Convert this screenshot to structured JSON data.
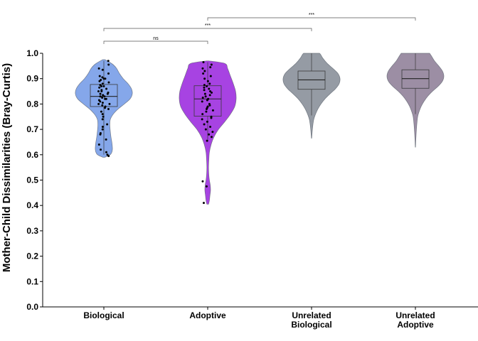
{
  "chart_data": {
    "type": "violin",
    "title": "",
    "xlabel": "",
    "ylabel": "Mother-Child Dissimilarities (Bray-Curtis)",
    "ylim": [
      0,
      1
    ],
    "yticks": [
      0.0,
      0.1,
      0.2,
      0.3,
      0.4,
      0.5,
      0.6,
      0.7,
      0.8,
      0.9,
      1.0
    ],
    "ytick_labels": [
      "0.0",
      "0.1",
      "0.2",
      "0.3",
      "0.4",
      "0.5",
      "0.6",
      "0.7",
      "0.8",
      "0.9",
      "1.0"
    ],
    "grid": false,
    "categories": [
      {
        "label_lines": [
          "Biological"
        ],
        "color": "#7b9fe8"
      },
      {
        "label_lines": [
          "Adoptive"
        ],
        "color": "#a033e0"
      },
      {
        "label_lines": [
          "Unrelated",
          "Biological"
        ],
        "color": "#8c939c"
      },
      {
        "label_lines": [
          "Unrelated",
          "Adoptive"
        ],
        "color": "#94849c"
      }
    ],
    "violins": [
      {
        "min": 0.59,
        "max": 0.975,
        "box": {
          "q1": 0.79,
          "median": 0.83,
          "q3": 0.877,
          "whisker_low": 0.6,
          "whisker_high": 0.97
        },
        "profile": [
          [
            0.59,
            0.04
          ],
          [
            0.6,
            0.22
          ],
          [
            0.61,
            0.28
          ],
          [
            0.62,
            0.3
          ],
          [
            0.63,
            0.3
          ],
          [
            0.65,
            0.28
          ],
          [
            0.67,
            0.25
          ],
          [
            0.7,
            0.22
          ],
          [
            0.72,
            0.21
          ],
          [
            0.74,
            0.23
          ],
          [
            0.76,
            0.33
          ],
          [
            0.78,
            0.5
          ],
          [
            0.8,
            0.72
          ],
          [
            0.82,
            0.92
          ],
          [
            0.84,
            1.0
          ],
          [
            0.86,
            0.97
          ],
          [
            0.88,
            0.85
          ],
          [
            0.9,
            0.68
          ],
          [
            0.92,
            0.55
          ],
          [
            0.94,
            0.45
          ],
          [
            0.955,
            0.33
          ],
          [
            0.965,
            0.2
          ],
          [
            0.975,
            0.04
          ]
        ],
        "points": [
          0.97,
          0.955,
          0.94,
          0.935,
          0.92,
          0.91,
          0.905,
          0.9,
          0.9,
          0.895,
          0.89,
          0.885,
          0.88,
          0.875,
          0.87,
          0.87,
          0.865,
          0.86,
          0.855,
          0.85,
          0.85,
          0.845,
          0.84,
          0.84,
          0.835,
          0.83,
          0.83,
          0.825,
          0.82,
          0.82,
          0.815,
          0.81,
          0.805,
          0.8,
          0.8,
          0.795,
          0.79,
          0.785,
          0.78,
          0.77,
          0.76,
          0.75,
          0.74,
          0.72,
          0.71,
          0.7,
          0.685,
          0.68,
          0.66,
          0.64,
          0.62,
          0.61,
          0.6,
          0.595
        ]
      },
      {
        "min": 0.405,
        "max": 0.97,
        "box": {
          "q1": 0.752,
          "median": 0.82,
          "q3": 0.872,
          "whisker_low": 0.66,
          "whisker_high": 0.965
        },
        "profile": [
          [
            0.405,
            0.03
          ],
          [
            0.42,
            0.06
          ],
          [
            0.44,
            0.08
          ],
          [
            0.46,
            0.1
          ],
          [
            0.48,
            0.09
          ],
          [
            0.5,
            0.06
          ],
          [
            0.52,
            0.04
          ],
          [
            0.55,
            0.03
          ],
          [
            0.58,
            0.04
          ],
          [
            0.61,
            0.06
          ],
          [
            0.64,
            0.12
          ],
          [
            0.67,
            0.22
          ],
          [
            0.7,
            0.38
          ],
          [
            0.73,
            0.6
          ],
          [
            0.76,
            0.8
          ],
          [
            0.79,
            0.95
          ],
          [
            0.82,
            1.0
          ],
          [
            0.85,
            0.98
          ],
          [
            0.88,
            0.9
          ],
          [
            0.91,
            0.8
          ],
          [
            0.94,
            0.7
          ],
          [
            0.96,
            0.6
          ],
          [
            0.97,
            0.04
          ]
        ],
        "points": [
          0.965,
          0.955,
          0.945,
          0.94,
          0.93,
          0.92,
          0.91,
          0.9,
          0.89,
          0.88,
          0.875,
          0.87,
          0.865,
          0.86,
          0.855,
          0.85,
          0.845,
          0.84,
          0.835,
          0.83,
          0.825,
          0.82,
          0.815,
          0.81,
          0.8,
          0.795,
          0.79,
          0.785,
          0.78,
          0.775,
          0.77,
          0.76,
          0.75,
          0.745,
          0.74,
          0.73,
          0.72,
          0.71,
          0.7,
          0.69,
          0.68,
          0.67,
          0.655,
          0.495,
          0.475,
          0.41
        ]
      },
      {
        "min": 0.665,
        "max": 1.0,
        "box": {
          "q1": 0.858,
          "median": 0.895,
          "q3": 0.93,
          "whisker_low": 0.755,
          "whisker_high": 1.0
        },
        "profile": [
          [
            0.665,
            0.005
          ],
          [
            0.68,
            0.015
          ],
          [
            0.7,
            0.03
          ],
          [
            0.72,
            0.05
          ],
          [
            0.74,
            0.08
          ],
          [
            0.76,
            0.14
          ],
          [
            0.78,
            0.22
          ],
          [
            0.8,
            0.33
          ],
          [
            0.82,
            0.47
          ],
          [
            0.84,
            0.65
          ],
          [
            0.86,
            0.84
          ],
          [
            0.88,
            0.97
          ],
          [
            0.9,
            1.0
          ],
          [
            0.92,
            0.93
          ],
          [
            0.94,
            0.75
          ],
          [
            0.96,
            0.55
          ],
          [
            0.98,
            0.4
          ],
          [
            0.995,
            0.32
          ],
          [
            1.0,
            0.28
          ]
        ],
        "points": []
      },
      {
        "min": 0.63,
        "max": 1.0,
        "box": {
          "q1": 0.862,
          "median": 0.9,
          "q3": 0.935,
          "whisker_low": 0.76,
          "whisker_high": 1.0
        },
        "profile": [
          [
            0.63,
            0.005
          ],
          [
            0.66,
            0.015
          ],
          [
            0.69,
            0.03
          ],
          [
            0.72,
            0.05
          ],
          [
            0.75,
            0.08
          ],
          [
            0.77,
            0.13
          ],
          [
            0.79,
            0.2
          ],
          [
            0.81,
            0.3
          ],
          [
            0.83,
            0.43
          ],
          [
            0.85,
            0.6
          ],
          [
            0.87,
            0.8
          ],
          [
            0.89,
            0.95
          ],
          [
            0.91,
            1.0
          ],
          [
            0.93,
            0.95
          ],
          [
            0.95,
            0.82
          ],
          [
            0.97,
            0.67
          ],
          [
            0.99,
            0.56
          ],
          [
            1.0,
            0.5
          ]
        ],
        "points": []
      }
    ],
    "significance": [
      {
        "from": 0,
        "to": 1,
        "label": "ns"
      },
      {
        "from": 0,
        "to": 2,
        "label": "***"
      },
      {
        "from": 1,
        "to": 3,
        "label": "***"
      }
    ]
  }
}
